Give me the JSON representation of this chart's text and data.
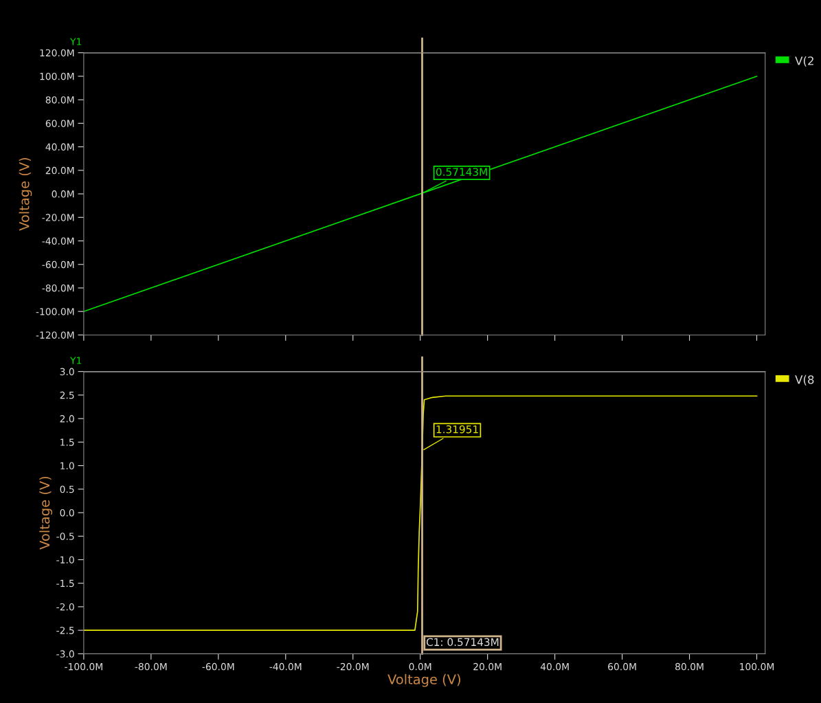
{
  "chart_data": [
    {
      "type": "line",
      "ylabel": "Voltage (V)",
      "annotations": [
        "Y1",
        {
          "text": "0.57143M",
          "x": 0.57143,
          "y": 0.57143
        }
      ],
      "series": [
        {
          "name": "V(2",
          "color": "#00e000",
          "x": [
            -100,
            0.57143,
            100
          ],
          "values": [
            -100,
            0.57143,
            100
          ]
        }
      ],
      "xlim": [
        -100,
        102.5
      ],
      "xticks": [
        {
          "value": -100,
          "label": null
        },
        {
          "value": -80,
          "label": null
        },
        {
          "value": -60,
          "label": null
        },
        {
          "value": -40,
          "label": null
        },
        {
          "value": -20,
          "label": null
        },
        {
          "value": 0,
          "label": null
        },
        {
          "value": 20,
          "label": null
        },
        {
          "value": 40,
          "label": null
        },
        {
          "value": 60,
          "label": null
        },
        {
          "value": 80,
          "label": null
        },
        {
          "value": 100,
          "label": null
        }
      ],
      "ylim": [
        -120,
        120
      ],
      "yticks": [
        {
          "value": -120,
          "label": "-120.0M"
        },
        {
          "value": -100,
          "label": "-100.0M"
        },
        {
          "value": -80,
          "label": "-80.0M"
        },
        {
          "value": -60,
          "label": "-60.0M"
        },
        {
          "value": -40,
          "label": "-40.0M"
        },
        {
          "value": -20,
          "label": "-20.0M"
        },
        {
          "value": 0,
          "label": "0.0M"
        },
        {
          "value": 20,
          "label": "20.0M"
        },
        {
          "value": 40,
          "label": "40.0M"
        },
        {
          "value": 60,
          "label": "60.0M"
        },
        {
          "value": 80,
          "label": "80.0M"
        },
        {
          "value": 100,
          "label": "100.0M"
        },
        {
          "value": 120,
          "label": "120.0M"
        }
      ],
      "ref_lines": [
        {
          "axis": "x",
          "value": 0.57143,
          "color": "#d2b48c"
        }
      ],
      "tick_labels": "y",
      "legend": "top right",
      "grid": false
    },
    {
      "type": "line",
      "xlabel": "Voltage (V)",
      "ylabel": "Voltage (V)",
      "annotations": [
        "Y1",
        {
          "text": "1.31951",
          "x": 0.57143,
          "y": 1.31951
        }
      ],
      "series": [
        {
          "name": "V(8",
          "color": "#e8e800",
          "x": [
            -100,
            -1.6,
            -0.8,
            -0.6,
            -0.3,
            0.06,
            0.57143,
            0.9,
            1.2,
            3.6,
            7.6,
            100
          ],
          "values": [
            -2.5,
            -2.5,
            -2.1,
            -1.2,
            -0.4,
            0.2,
            1.31951,
            2.1,
            2.4,
            2.45,
            2.48,
            2.48
          ]
        }
      ],
      "xlim": [
        -100,
        102.5
      ],
      "xticks": [
        {
          "value": -100,
          "label": "-100.0M"
        },
        {
          "value": -80,
          "label": "-80.0M"
        },
        {
          "value": -60,
          "label": "-60.0M"
        },
        {
          "value": -40,
          "label": "-40.0M"
        },
        {
          "value": -20,
          "label": "-20.0M"
        },
        {
          "value": 0,
          "label": "0.0M"
        },
        {
          "value": 20,
          "label": "20.0M"
        },
        {
          "value": 40,
          "label": "40.0M"
        },
        {
          "value": 60,
          "label": "60.0M"
        },
        {
          "value": 80,
          "label": "80.0M"
        },
        {
          "value": 100,
          "label": "100.0M"
        }
      ],
      "ylim": [
        -3,
        3
      ],
      "yticks": [
        {
          "value": -3,
          "label": "-3.0"
        },
        -2.5,
        {
          "value": -2,
          "label": "-2.0"
        },
        -1.5,
        {
          "value": -1,
          "label": "-1.0"
        },
        -0.5,
        {
          "value": 0,
          "label": "0.0"
        },
        0.5,
        {
          "value": 1,
          "label": "1.0"
        },
        1.5,
        {
          "value": 2,
          "label": "2.0"
        },
        2.5,
        {
          "value": 3,
          "label": "3.0"
        }
      ],
      "ref_lines": [
        {
          "axis": "x",
          "value": 0.57143,
          "label": "C1: 0.57143M",
          "color": "#d2b48c"
        }
      ],
      "legend": "top right",
      "grid": false
    }
  ]
}
